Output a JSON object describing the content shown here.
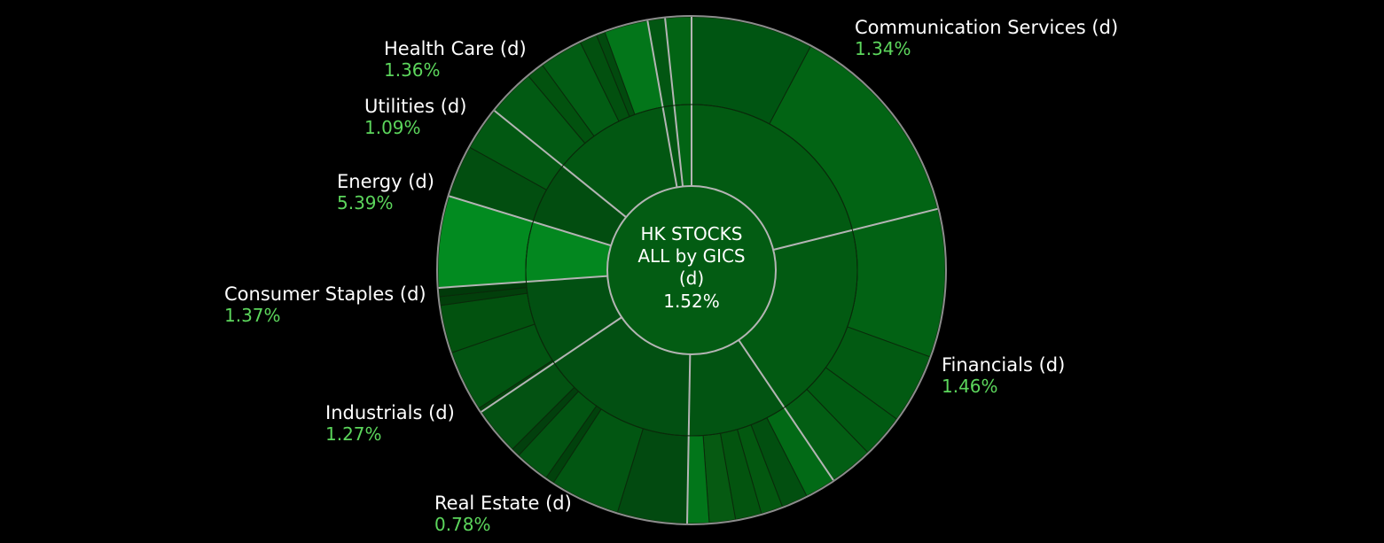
{
  "chart_data": {
    "type": "sunburst",
    "center": {
      "lines": [
        "HK STOCKS",
        "ALL by GICS",
        "(d)"
      ],
      "value": "1.52%"
    },
    "sectors": [
      {
        "name": "Communication Services (d)",
        "value": "1.34%",
        "change": 1.34,
        "start_deg": 0,
        "end_deg": 76,
        "color": "#025a12",
        "outer_color": "#026014",
        "subs": [
          {
            "end_deg": 28,
            "color": "#005512"
          },
          {
            "end_deg": 76,
            "color": "#026414"
          }
        ]
      },
      {
        "name": "Financials (d)",
        "value": "1.46%",
        "change": 1.46,
        "start_deg": 76,
        "end_deg": 146,
        "color": "#025a12",
        "outer_color": "#016213",
        "subs": [
          {
            "end_deg": 110,
            "color": "#026214"
          },
          {
            "end_deg": 126,
            "color": "#025a12"
          },
          {
            "end_deg": 136,
            "color": "#015a12"
          },
          {
            "end_deg": 146,
            "color": "#035e14"
          }
        ]
      },
      {
        "name": "Real Estate (d)",
        "value": "0.78%",
        "change": 0.78,
        "start_deg": 146,
        "end_deg": 181,
        "color": "#025412",
        "outer_color": "#025412",
        "subs": [
          {
            "end_deg": 153,
            "color": "#026a16"
          },
          {
            "end_deg": 159,
            "color": "#024f10"
          },
          {
            "end_deg": 164,
            "color": "#035810"
          },
          {
            "end_deg": 170,
            "color": "#03540f"
          },
          {
            "end_deg": 176,
            "color": "#065a12"
          },
          {
            "end_deg": 181,
            "color": "#02761a"
          }
        ]
      },
      {
        "name": "Industrials (d)",
        "value": "1.27%",
        "change": 1.27,
        "start_deg": 181,
        "end_deg": 236,
        "color": "#025012",
        "outer_color": "#025012",
        "subs": [
          {
            "end_deg": 197,
            "color": "#024a10"
          },
          {
            "end_deg": 213,
            "color": "#025612"
          },
          {
            "end_deg": 215,
            "color": "#01420c"
          },
          {
            "end_deg": 223,
            "color": "#025512"
          },
          {
            "end_deg": 225,
            "color": "#02400d"
          },
          {
            "end_deg": 236,
            "color": "#035212"
          }
        ]
      },
      {
        "name": "Consumer Staples (d)",
        "value": "1.37%",
        "change": 1.37,
        "start_deg": 236,
        "end_deg": 266,
        "color": "#025012",
        "outer_color": "#025012",
        "subs": [
          {
            "end_deg": 237,
            "color": "#03420c"
          },
          {
            "end_deg": 251,
            "color": "#025512"
          },
          {
            "end_deg": 262,
            "color": "#02520f"
          },
          {
            "end_deg": 264,
            "color": "#023f0b"
          },
          {
            "end_deg": 266,
            "color": "#013a0a"
          }
        ]
      },
      {
        "name": "Energy (d)",
        "value": "5.39%",
        "change": 5.39,
        "start_deg": 266,
        "end_deg": 287,
        "color": "#03871f",
        "outer_color": "#028b20",
        "subs": [
          {
            "end_deg": 287,
            "color": "#028b20"
          }
        ]
      },
      {
        "name": "Utilities (d)",
        "value": "1.09%",
        "change": 1.09,
        "start_deg": 287,
        "end_deg": 309,
        "color": "#024d10",
        "outer_color": "#024e10",
        "subs": [
          {
            "end_deg": 299,
            "color": "#024e10"
          },
          {
            "end_deg": 309,
            "color": "#025812"
          }
        ]
      },
      {
        "name": "Health Care (d)",
        "value": "1.36%",
        "change": 1.36,
        "start_deg": 309,
        "end_deg": 350,
        "color": "#025712",
        "outer_color": "#025a13",
        "subs": [
          {
            "end_deg": 320,
            "color": "#025a13"
          },
          {
            "end_deg": 324,
            "color": "#02520f"
          },
          {
            "end_deg": 334,
            "color": "#025d14"
          },
          {
            "end_deg": 338,
            "color": "#02500f"
          },
          {
            "end_deg": 340,
            "color": "#024a0e"
          },
          {
            "end_deg": 350,
            "color": "#03761a"
          }
        ]
      },
      {
        "name": "",
        "value": "",
        "change": null,
        "start_deg": 350,
        "end_deg": 354,
        "color": "#025612",
        "outer_color": "#025612",
        "subs": [
          {
            "end_deg": 354,
            "color": "#025612"
          }
        ]
      },
      {
        "name": "",
        "value": "",
        "change": null,
        "start_deg": 354,
        "end_deg": 360,
        "color": "#026414",
        "outer_color": "#026414",
        "subs": [
          {
            "end_deg": 360,
            "color": "#026414"
          }
        ]
      }
    ],
    "colors": {
      "background": "#000000",
      "label_text": "#ffffff",
      "value_text": "#5cd65c",
      "sector_divider": "#b4b4b4",
      "sub_divider": "#0a2a0a",
      "outer_ring": "#8c8c8c",
      "center_fill": "#035c13"
    }
  }
}
